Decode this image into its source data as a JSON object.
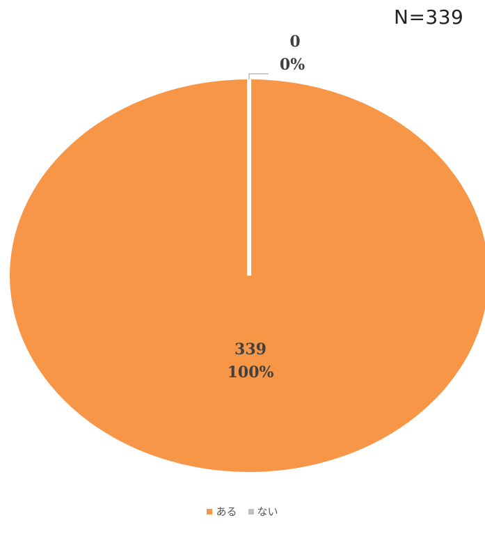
{
  "header": {
    "n_label": "N=339"
  },
  "chart_data": {
    "type": "pie",
    "categories": [
      "ある",
      "ない"
    ],
    "values": [
      339,
      0
    ],
    "percent_labels": [
      "100%",
      "0%"
    ],
    "colors": [
      "#F79646",
      "#BFBFBF"
    ],
    "legend_position": "bottom",
    "start_angle": "12 o'clock",
    "direction": "clockwise"
  }
}
